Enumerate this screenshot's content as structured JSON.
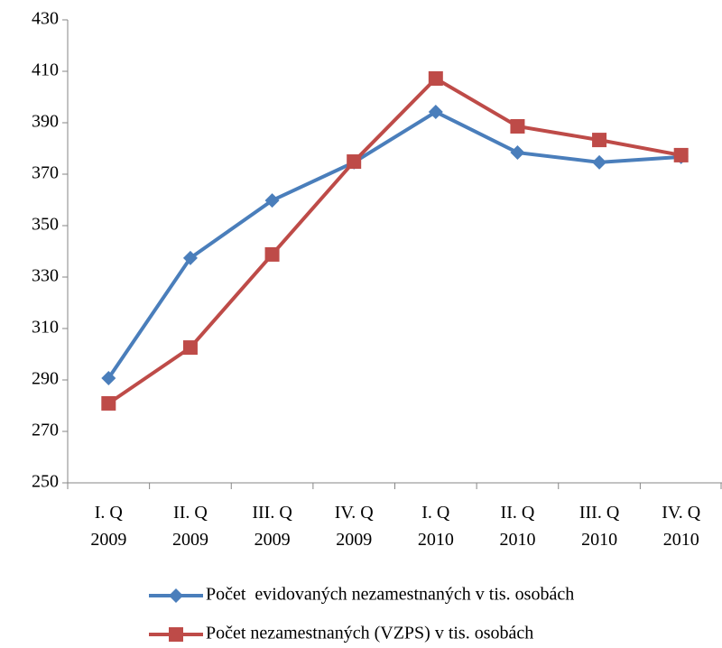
{
  "chart_data": {
    "type": "line",
    "categories": [
      "I. Q 2009",
      "II. Q 2009",
      "III. Q 2009",
      "IV. Q 2009",
      "I. Q 2010",
      "II. Q 2010",
      "III. Q 2010",
      "IV. Q 2010"
    ],
    "series": [
      {
        "name": "Počet  evidovaných nezamestnaných v tis. osobách",
        "color": "#4a7ebb",
        "marker": "diamond",
        "values": [
          290.7,
          337.4,
          359.8,
          374.6,
          394.2,
          378.4,
          374.6,
          376.7
        ]
      },
      {
        "name": "Počet nezamestnaných (VZPS) v tis. osobách",
        "color": "#be4b48",
        "marker": "square",
        "values": [
          280.9,
          302.6,
          338.8,
          374.9,
          407.2,
          388.6,
          383.3,
          377.4
        ]
      }
    ],
    "ylim": [
      250,
      430
    ],
    "yticks": [
      250,
      270,
      290,
      310,
      330,
      350,
      370,
      390,
      410,
      430
    ],
    "grid": false,
    "legend": "bottom"
  }
}
